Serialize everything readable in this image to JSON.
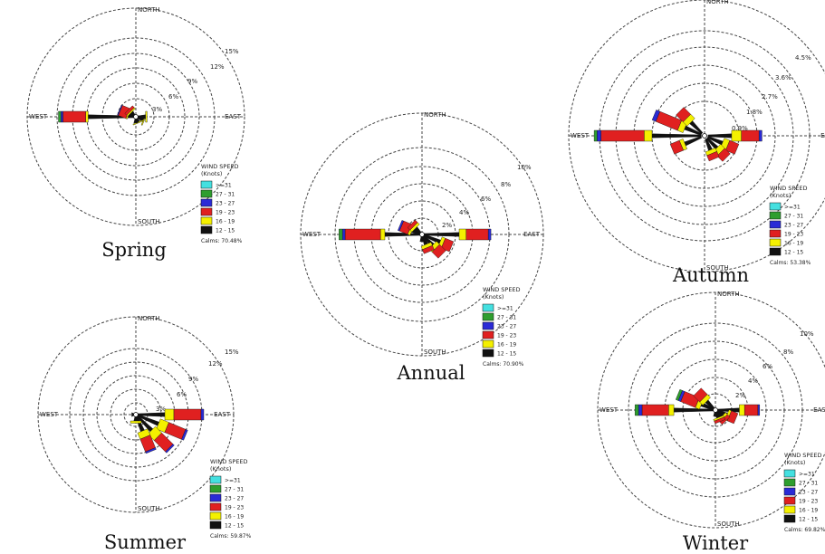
{
  "direction_labels": {
    "north": "NORTH",
    "south": "SOUTH",
    "east": "EAST",
    "west": "WEST"
  },
  "legend": {
    "title": "WIND SPEED",
    "unit": "(Knots)",
    "bins": [
      {
        "label": ">=31",
        "color": "#44e0e0"
      },
      {
        "label": "27 - 31",
        "color": "#2e9e2e"
      },
      {
        "label": "23 - 27",
        "color": "#2a2ad6"
      },
      {
        "label": "19 - 23",
        "color": "#e02020"
      },
      {
        "label": "16 - 19",
        "color": "#f4f000"
      },
      {
        "label": "12 - 15",
        "color": "#111111"
      }
    ]
  },
  "chart_data": [
    {
      "type": "wind-rose",
      "title": "Spring",
      "ring_labels": [
        "3%",
        "6%",
        "9%",
        "12%",
        "15%"
      ],
      "ring_step": 3,
      "calms": "Calms: 70.48%",
      "petals": [
        {
          "direction": "W",
          "segments": [
            9.0,
            0.5,
            4.5,
            0.4,
            0.5
          ]
        },
        {
          "direction": "WNW",
          "segments": [
            1.0,
            0.3,
            1.6,
            0.2
          ]
        },
        {
          "direction": "NW",
          "segments": [
            0.8,
            0.3,
            0.5
          ]
        },
        {
          "direction": "ESE",
          "segments": [
            1.2,
            0.2
          ]
        },
        {
          "direction": "E",
          "segments": [
            1.5,
            0.3
          ]
        },
        {
          "direction": "SSE",
          "segments": [
            0.7,
            0.2
          ]
        },
        {
          "direction": "S",
          "segments": [
            0.8
          ]
        }
      ]
    },
    {
      "type": "wind-rose",
      "title": "Summer",
      "ring_labels": [
        "3%",
        "6%",
        "9%",
        "12%",
        "15%"
      ],
      "ring_step": 3,
      "calms": "Calms: 59.87%",
      "petals": [
        {
          "direction": "E",
          "segments": [
            6.0,
            2.0,
            6.0,
            0.6
          ]
        },
        {
          "direction": "ESE",
          "segments": [
            5.0,
            2.0,
            4.0,
            0.5
          ]
        },
        {
          "direction": "SE",
          "segments": [
            4.5,
            2.0,
            3.5,
            0.4
          ]
        },
        {
          "direction": "SSE",
          "segments": [
            3.5,
            1.5,
            3.0,
            0.4
          ]
        },
        {
          "direction": "S",
          "segments": [
            1.0,
            0.5
          ]
        },
        {
          "direction": "W",
          "segments": [
            0.5
          ]
        }
      ]
    },
    {
      "type": "wind-rose",
      "title": "Annual",
      "ring_labels": [
        "2%",
        "4%",
        "6%",
        "8%",
        "10%"
      ],
      "ring_step": 2,
      "calms": "Calms: 70.90%",
      "petals": [
        {
          "direction": "W",
          "segments": [
            4.0,
            0.5,
            4.0,
            0.3,
            0.4
          ]
        },
        {
          "direction": "WNW",
          "segments": [
            1.0,
            0.3,
            1.0,
            0.2
          ]
        },
        {
          "direction": "NW",
          "segments": [
            0.8,
            0.3,
            0.4
          ]
        },
        {
          "direction": "E",
          "segments": [
            4.0,
            0.8,
            2.5,
            0.3
          ]
        },
        {
          "direction": "ESE",
          "segments": [
            2.0,
            0.4,
            1.0
          ]
        },
        {
          "direction": "SE",
          "segments": [
            1.5,
            0.5,
            1.0
          ]
        },
        {
          "direction": "SSE",
          "segments": [
            1.0,
            0.4,
            0.5
          ]
        },
        {
          "direction": "S",
          "segments": [
            0.6
          ]
        }
      ]
    },
    {
      "type": "wind-rose",
      "title": "Autumn",
      "ring_labels": [
        "0.9%",
        "1.8%",
        "2.7%",
        "3.6%",
        "4.5%"
      ],
      "ring_step": 0.9,
      "calms": "Calms: 53.38%",
      "petals": [
        {
          "direction": "W",
          "segments": [
            2.5,
            0.4,
            2.2,
            0.2,
            0.15
          ]
        },
        {
          "direction": "WNW",
          "segments": [
            0.9,
            0.3,
            1.2,
            0.2
          ]
        },
        {
          "direction": "NW",
          "segments": [
            0.8,
            0.3,
            0.5
          ]
        },
        {
          "direction": "E",
          "segments": [
            1.2,
            0.5,
            0.9,
            0.15
          ]
        },
        {
          "direction": "ESE",
          "segments": [
            0.8,
            0.3,
            0.5
          ]
        },
        {
          "direction": "SE",
          "segments": [
            0.7,
            0.3,
            0.4
          ]
        },
        {
          "direction": "SSE",
          "segments": [
            0.6,
            0.2,
            0.3
          ]
        },
        {
          "direction": "WSW",
          "segments": [
            0.9,
            0.2,
            0.5
          ]
        }
      ]
    },
    {
      "type": "wind-rose",
      "title": "Winter",
      "ring_labels": [
        "2%",
        "4%",
        "6%",
        "8%",
        "10%"
      ],
      "ring_step": 2,
      "calms": "Calms: 69.82%",
      "petals": [
        {
          "direction": "W",
          "segments": [
            4.5,
            0.6,
            3.0,
            0.4,
            0.4
          ]
        },
        {
          "direction": "WNW",
          "segments": [
            1.5,
            0.5,
            1.8,
            0.3,
            0.3
          ]
        },
        {
          "direction": "NW",
          "segments": [
            1.2,
            0.5,
            1.0
          ]
        },
        {
          "direction": "E",
          "segments": [
            2.5,
            0.6,
            1.5,
            0.2
          ]
        },
        {
          "direction": "ESE",
          "segments": [
            1.2,
            0.3,
            0.8
          ]
        },
        {
          "direction": "SE",
          "segments": [
            0.8,
            0.3,
            0.4
          ]
        },
        {
          "direction": "SSE",
          "segments": [
            0.7,
            0.2,
            0.3
          ]
        },
        {
          "direction": "S",
          "segments": [
            0.5
          ]
        }
      ]
    }
  ]
}
